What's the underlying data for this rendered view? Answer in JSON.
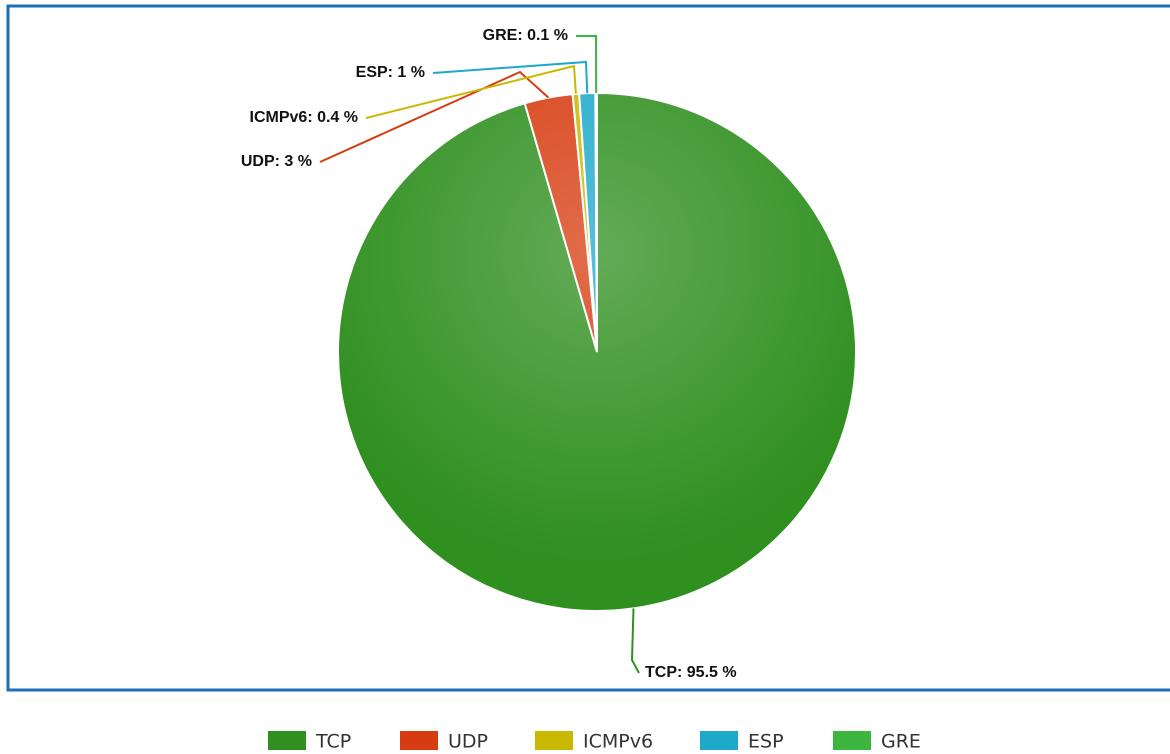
{
  "chart_data": {
    "type": "pie",
    "categories": [
      "TCP",
      "UDP",
      "ICMPv6",
      "ESP",
      "GRE"
    ],
    "values": [
      95.5,
      3,
      0.4,
      1,
      0.1
    ],
    "value_labels": [
      "TCP: 95.5 %",
      "UDP: 3 %",
      "ICMPv6: 0.4 %",
      "ESP: 1 %",
      "GRE: 0.1 %"
    ],
    "colors": [
      "#2f8f1f",
      "#d63c10",
      "#c9b800",
      "#1da9c9",
      "#3cb63e"
    ],
    "legend": "bottom"
  }
}
